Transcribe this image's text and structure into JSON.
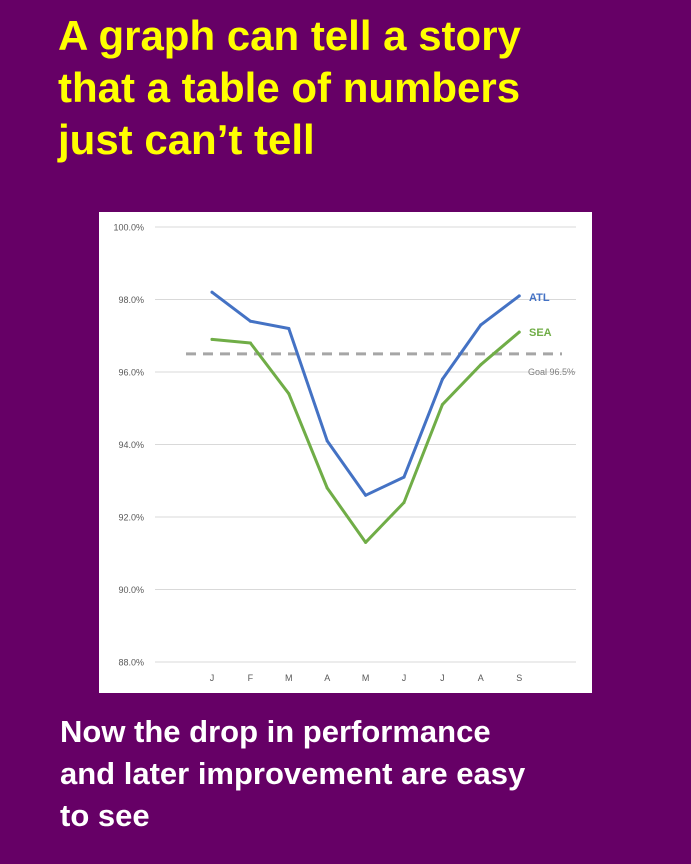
{
  "headline": {
    "lines": [
      "A graph can tell a story",
      "that a table of numbers",
      "just can’t tell"
    ]
  },
  "caption": {
    "lines": [
      "Now the drop in performance",
      "and later improvement are easy",
      "to see"
    ]
  },
  "colors": {
    "background": "#660066",
    "headline": "#ffff00",
    "caption": "#ffffff",
    "atl": "#4472c4",
    "sea": "#70ad47",
    "goal": "#a6a6a6",
    "grid": "#d9d9d9",
    "tick_text": "#595959"
  },
  "chart_data": {
    "type": "line",
    "title": "",
    "xlabel": "",
    "ylabel": "",
    "categories": [
      "J",
      "F",
      "M",
      "A",
      "M",
      "J",
      "J",
      "A",
      "S"
    ],
    "ylim": [
      88.0,
      100.0
    ],
    "yticks": [
      "100.0%",
      "98.0%",
      "96.0%",
      "94.0%",
      "92.0%",
      "90.0%",
      "88.0%"
    ],
    "ytick_values": [
      100,
      98,
      96,
      94,
      92,
      90,
      88
    ],
    "grid": true,
    "legend": "direct labels at right end of lines",
    "series": [
      {
        "name": "ATL",
        "values": [
          98.2,
          97.4,
          97.2,
          94.1,
          92.6,
          93.1,
          95.8,
          97.3,
          98.1
        ]
      },
      {
        "name": "SEA",
        "values": [
          96.9,
          96.8,
          95.4,
          92.8,
          91.3,
          92.4,
          95.1,
          96.2,
          97.1
        ]
      }
    ],
    "reference_line": {
      "label": "Goal 96.5%",
      "value": 96.5,
      "style": "dashed"
    }
  }
}
